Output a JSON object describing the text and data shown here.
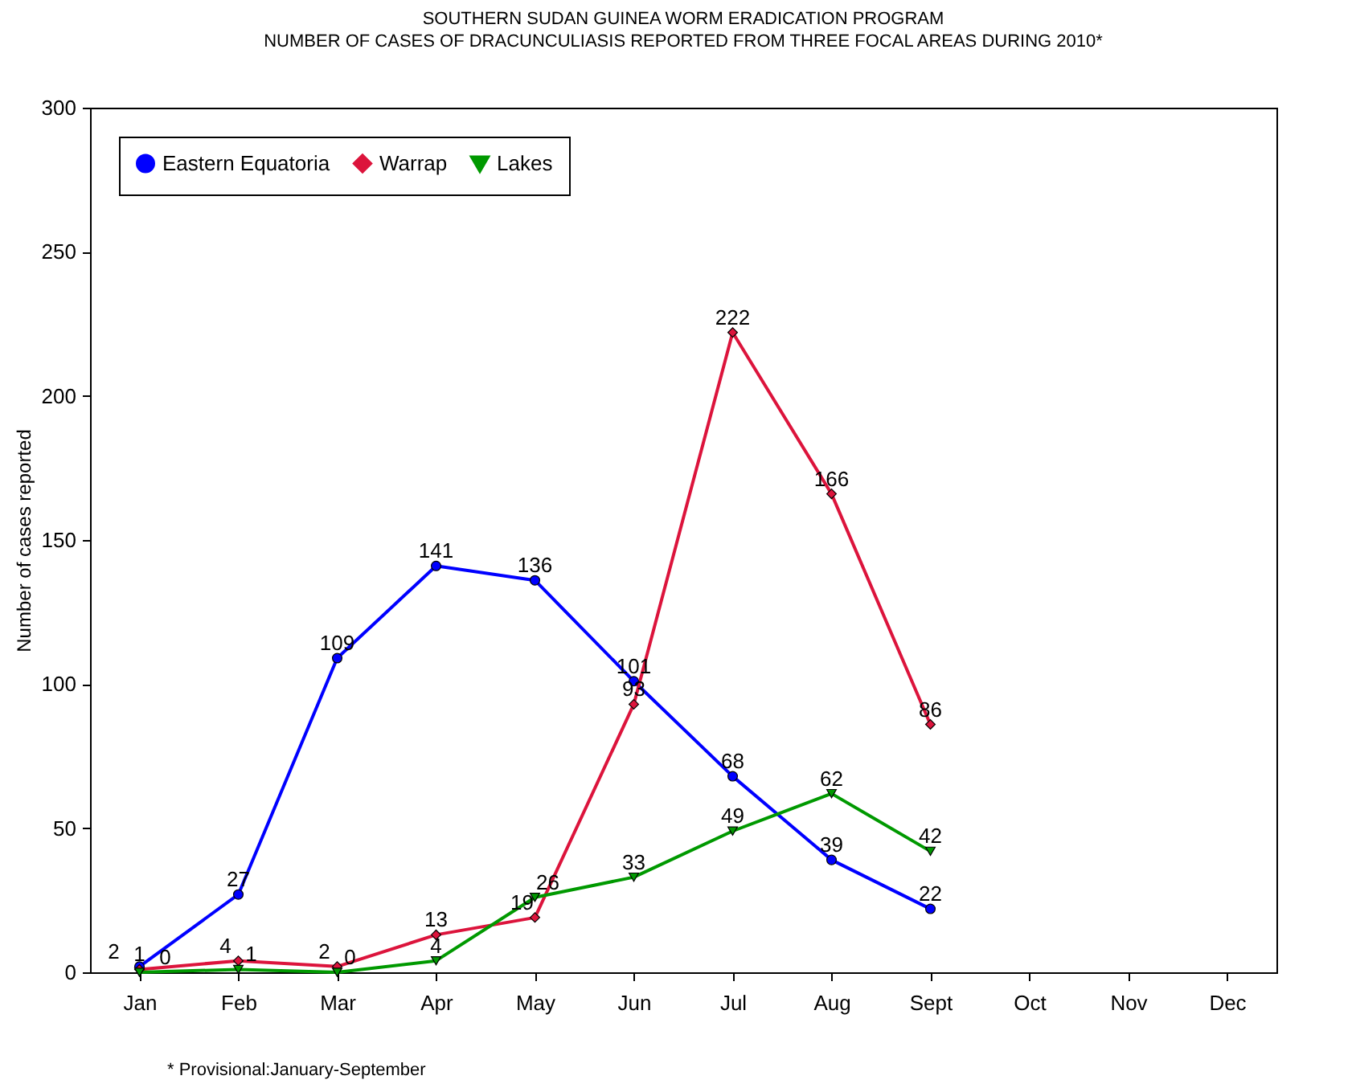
{
  "chart_data": {
    "type": "line",
    "title": "SOUTHERN SUDAN GUINEA WORM ERADICATION PROGRAM",
    "subtitle": "NUMBER OF CASES OF DRACUNCULIASIS REPORTED FROM THREE FOCAL AREAS DURING 2010*",
    "ylabel": "Number of cases reported",
    "categories": [
      "Jan",
      "Feb",
      "Mar",
      "Apr",
      "May",
      "Jun",
      "Jul",
      "Aug",
      "Sept",
      "Oct",
      "Nov",
      "Dec"
    ],
    "series": [
      {
        "name": "Eastern Equatoria",
        "color": "#0000ff",
        "marker": "circle",
        "values": [
          2,
          27,
          109,
          141,
          136,
          101,
          68,
          39,
          22,
          null,
          null,
          null
        ]
      },
      {
        "name": "Warrap",
        "color": "#dc143c",
        "marker": "diamond",
        "values": [
          1,
          4,
          2,
          13,
          19,
          93,
          222,
          166,
          86,
          null,
          null,
          null
        ]
      },
      {
        "name": "Lakes",
        "color": "#009900",
        "marker": "triangle",
        "values": [
          0,
          1,
          0,
          4,
          26,
          33,
          49,
          62,
          42,
          null,
          null,
          null
        ]
      }
    ],
    "ylim": [
      0,
      300
    ],
    "yticks": [
      0,
      50,
      100,
      150,
      200,
      250,
      300
    ],
    "grid": false,
    "legend": "top left",
    "data_labels": true,
    "annotations": [
      "* Provisional:January-September"
    ]
  }
}
